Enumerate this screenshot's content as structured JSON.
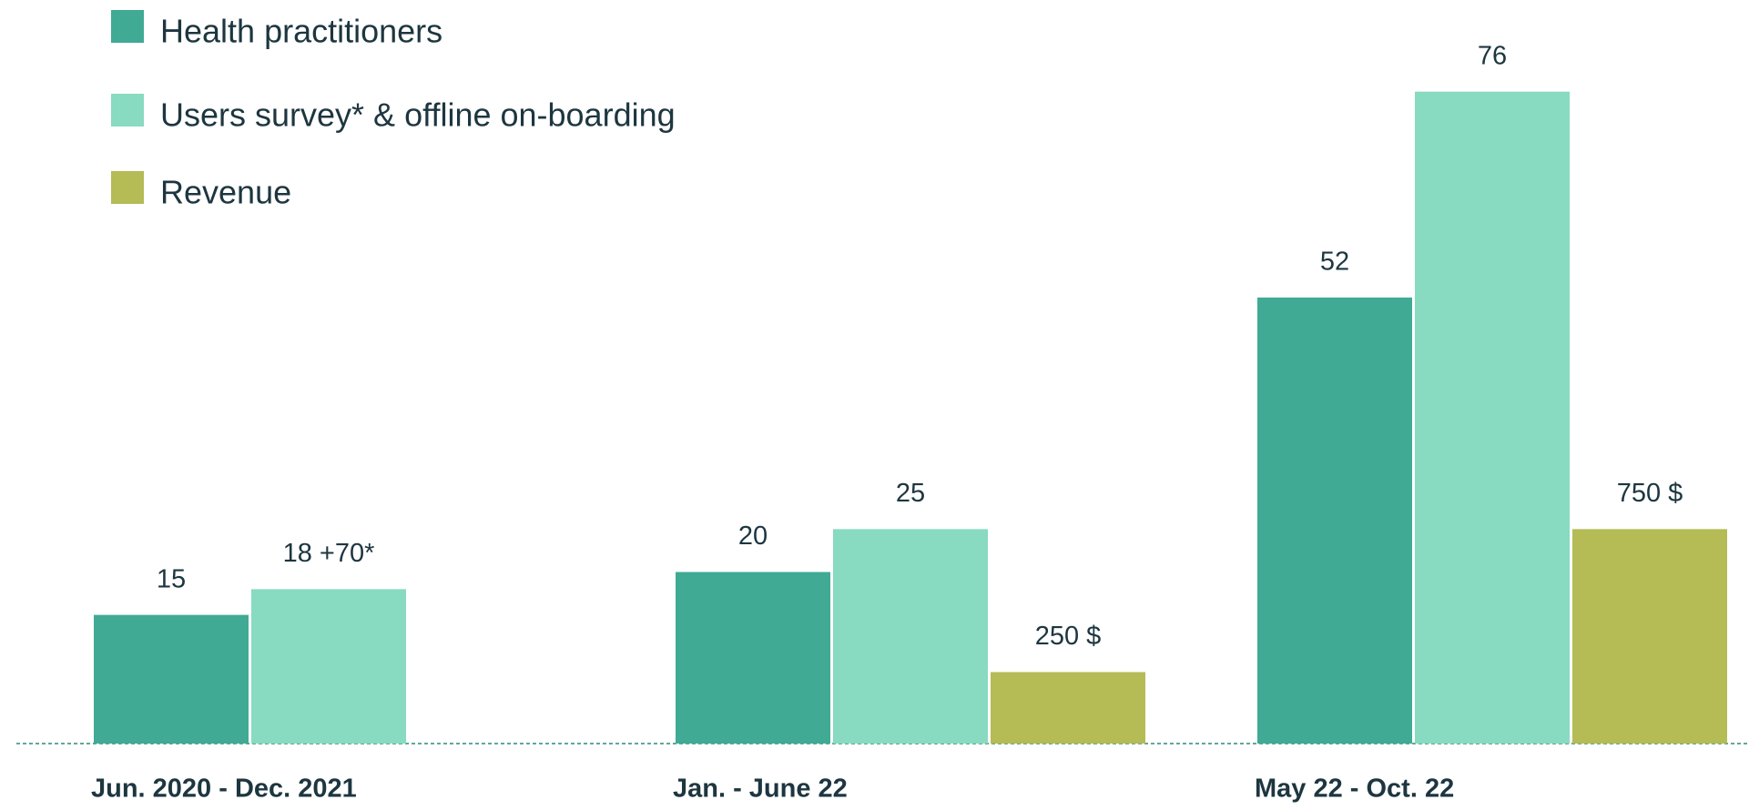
{
  "chart_data": {
    "type": "bar",
    "categories": [
      "Jun. 2020 - Dec. 2021",
      "Jan. - June 22",
      "May 22 - Oct. 22"
    ],
    "series": [
      {
        "name": "Health practitioners",
        "color": "#40aa94",
        "values": [
          15,
          20,
          52
        ]
      },
      {
        "name": "Users survey* & offline on-boarding",
        "color": "#88dac1",
        "values": [
          18,
          25,
          76
        ],
        "value_labels": [
          "18 +70*",
          "25",
          "76"
        ]
      },
      {
        "name": "Revenue",
        "color": "#b5bb55",
        "axis": "y2",
        "values": [
          null,
          250,
          750
        ],
        "value_labels": [
          null,
          "250 $",
          "750 $"
        ]
      }
    ],
    "ylim": [
      0,
      80
    ],
    "y2lim": [
      0,
      2400
    ]
  }
}
